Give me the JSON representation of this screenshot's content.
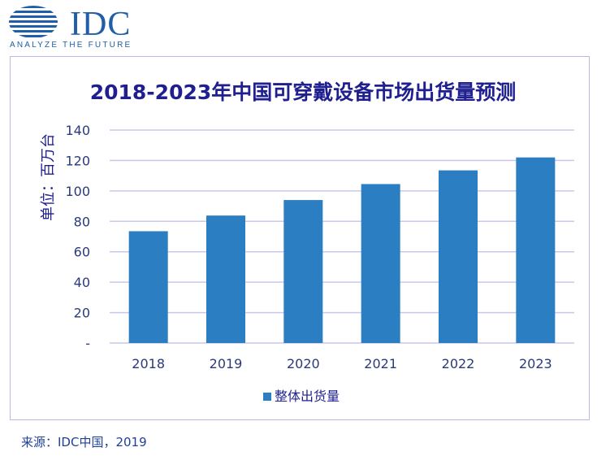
{
  "logo": {
    "brand": "IDC",
    "tagline": "ANALYZE THE FUTURE"
  },
  "source": "来源：IDC中国，2019",
  "colors": {
    "bar": "#2a7ec1",
    "title": "#1f1f8f",
    "grid": "#c8c8ec",
    "axis_text": "#2a3a7a",
    "logo": "#1f5ea8"
  },
  "chart_data": {
    "type": "bar",
    "title": "2018-2023年中国可穿戴设备市场出货量预测",
    "ylabel": "单位：百万台",
    "xlabel": "",
    "categories": [
      "2018",
      "2019",
      "2020",
      "2021",
      "2022",
      "2023"
    ],
    "series": [
      {
        "name": "整体出货量",
        "values": [
          73.5,
          83.8,
          94.0,
          104.5,
          113.5,
          122.0
        ]
      }
    ],
    "ylim": [
      0,
      140
    ],
    "yticks": [
      0,
      20,
      40,
      60,
      80,
      100,
      120,
      140
    ],
    "ytick_labels": [
      "-",
      "20",
      "40",
      "60",
      "80",
      "100",
      "120",
      "140"
    ],
    "grid": true,
    "legend": "bottom-center"
  }
}
